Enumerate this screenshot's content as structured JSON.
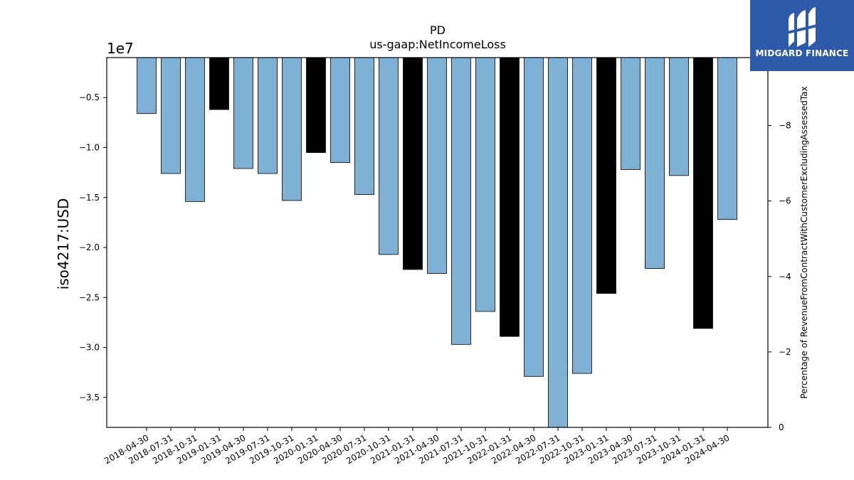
{
  "chart_data": {
    "type": "bar",
    "title": "PD",
    "subtitle": "us-gaap:NetIncomeLoss",
    "ylabel": "iso4217:USD",
    "y_offset_label": "1e7",
    "y2label": "Percentage of RevenueFromContractWithCustomerExcludingAssessedTax",
    "ylim": [
      -3.8,
      -0.1
    ],
    "y_scale": 10000000,
    "y2lim": [
      0,
      -9.8
    ],
    "yticks": [
      -0.5,
      -1.0,
      -1.5,
      -2.0,
      -2.5,
      -3.0,
      -3.5
    ],
    "ytick_labels": [
      "−0.5",
      "−1.0",
      "−1.5",
      "−2.0",
      "−2.5",
      "−3.0",
      "−3.5"
    ],
    "y2ticks": [
      0,
      -2,
      -4,
      -6,
      -8
    ],
    "y2tick_labels": [
      "0",
      "−2",
      "−4",
      "−6",
      "−8"
    ],
    "categories": [
      "2018-04-30",
      "2018-07-31",
      "2018-10-31",
      "2019-01-31",
      "2019-04-30",
      "2019-07-31",
      "2019-10-31",
      "2020-01-31",
      "2020-04-30",
      "2020-07-31",
      "2020-10-31",
      "2021-01-31",
      "2021-04-30",
      "2021-07-31",
      "2021-10-31",
      "2022-01-31",
      "2022-04-30",
      "2022-07-31",
      "2022-10-31",
      "2023-01-31",
      "2023-04-30",
      "2023-07-31",
      "2023-10-31",
      "2024-01-31",
      "2024-04-30"
    ],
    "values": [
      -0.66,
      -1.26,
      -1.54,
      -0.62,
      -1.21,
      -1.26,
      -1.53,
      -1.05,
      -1.15,
      -1.47,
      -2.07,
      -2.22,
      -2.26,
      -2.97,
      -2.64,
      -2.89,
      -3.29,
      -3.82,
      -3.26,
      -2.46,
      -1.22,
      -2.21,
      -1.28,
      -2.81,
      -1.72
    ],
    "highlight": [
      false,
      false,
      false,
      true,
      false,
      false,
      false,
      true,
      false,
      false,
      false,
      true,
      false,
      false,
      false,
      true,
      false,
      false,
      false,
      true,
      false,
      false,
      false,
      true,
      false
    ],
    "colors": {
      "bar": "#7eb0d5",
      "highlight": "#000000",
      "edge": "#000000"
    },
    "grid": false,
    "legend": "none"
  },
  "brand": {
    "name": "MIDGARD FINANCE",
    "bg": "#2d5aaa"
  }
}
